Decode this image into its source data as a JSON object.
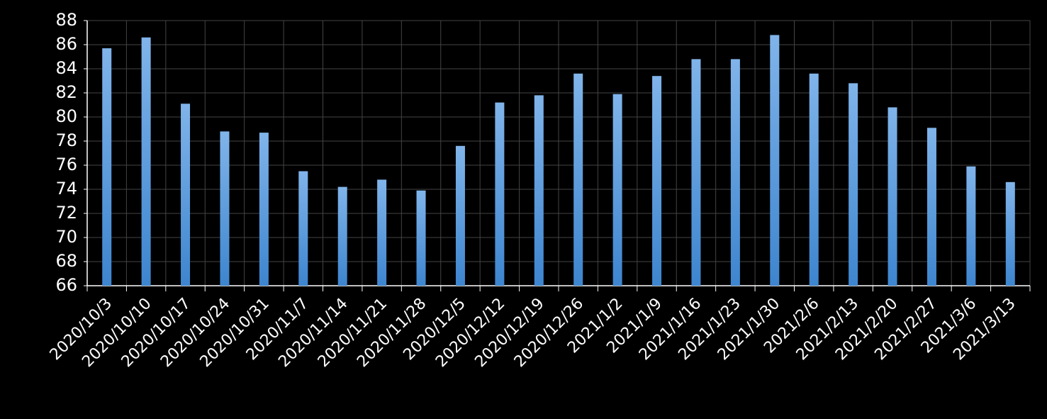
{
  "chart_data": {
    "type": "bar",
    "categories": [
      "2020/10/3",
      "2020/10/10",
      "2020/10/17",
      "2020/10/24",
      "2020/10/31",
      "2020/11/7",
      "2020/11/14",
      "2020/11/21",
      "2020/11/28",
      "2020/12/5",
      "2020/12/12",
      "2020/12/19",
      "2020/12/26",
      "2021/1/2",
      "2021/1/9",
      "2021/1/16",
      "2021/1/23",
      "2021/1/30",
      "2021/2/6",
      "2021/2/13",
      "2021/2/20",
      "2021/2/27",
      "2021/3/6",
      "2021/3/13"
    ],
    "values": [
      85.7,
      86.6,
      81.1,
      78.8,
      78.7,
      75.5,
      74.2,
      74.8,
      73.9,
      77.6,
      81.2,
      81.8,
      83.6,
      81.9,
      83.4,
      84.8,
      84.8,
      86.8,
      83.6,
      82.8,
      80.8,
      79.1,
      75.9,
      74.6
    ],
    "color": "#5b9bd5",
    "ylim": [
      66,
      88
    ],
    "yticks": [
      66,
      68,
      70,
      72,
      74,
      76,
      78,
      80,
      82,
      84,
      86,
      88
    ],
    "grid": true
  }
}
